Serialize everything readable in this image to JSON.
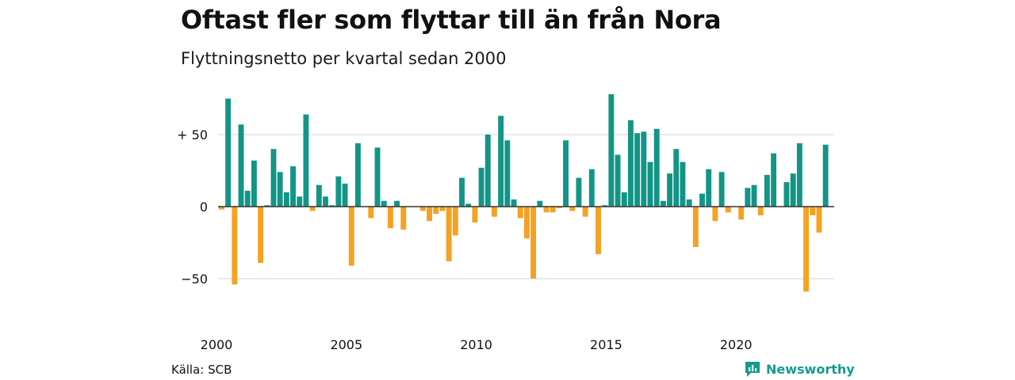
{
  "chart_data": {
    "type": "bar",
    "title": "Oftast fler som flyttar till än från Nora",
    "subtitle": "Flyttningsnetto per kvartal sedan 2000",
    "source": "Källa: SCB",
    "brand": "Newsworthy",
    "x_start": 2000,
    "quarters_per_year": 4,
    "x_ticks": [
      2000,
      2005,
      2010,
      2015,
      2020
    ],
    "y_ticks": [
      {
        "value": 50,
        "label": "+ 50"
      },
      {
        "value": 0,
        "label": "0"
      },
      {
        "value": -50,
        "label": "−50"
      }
    ],
    "ylim": [
      -65,
      80
    ],
    "grid": true,
    "colors": {
      "positive": "#139586",
      "negative": "#f5a121",
      "grid": "#e3e3e3",
      "zero_line": "#333333",
      "brand": "#149b8c"
    },
    "values": [
      -2,
      75,
      -54,
      57,
      11,
      32,
      -39,
      1,
      40,
      24,
      10,
      28,
      7,
      64,
      -3,
      15,
      7,
      1,
      21,
      16,
      -41,
      44,
      0,
      -8,
      41,
      4,
      -15,
      4,
      -16,
      0,
      0,
      -3,
      -10,
      -5,
      -3,
      -38,
      -20,
      20,
      2,
      -11,
      27,
      50,
      -7,
      63,
      46,
      5,
      -8,
      -22,
      -50,
      4,
      -4,
      -4,
      -1,
      46,
      -3,
      20,
      -7,
      26,
      -33,
      1,
      78,
      36,
      10,
      60,
      51,
      52,
      31,
      54,
      4,
      23,
      40,
      31,
      5,
      -28,
      9,
      26,
      -10,
      24,
      -4,
      0,
      -9,
      13,
      15,
      -6,
      22,
      37,
      0,
      17,
      23,
      44,
      -59,
      -6,
      -18,
      43
    ]
  }
}
